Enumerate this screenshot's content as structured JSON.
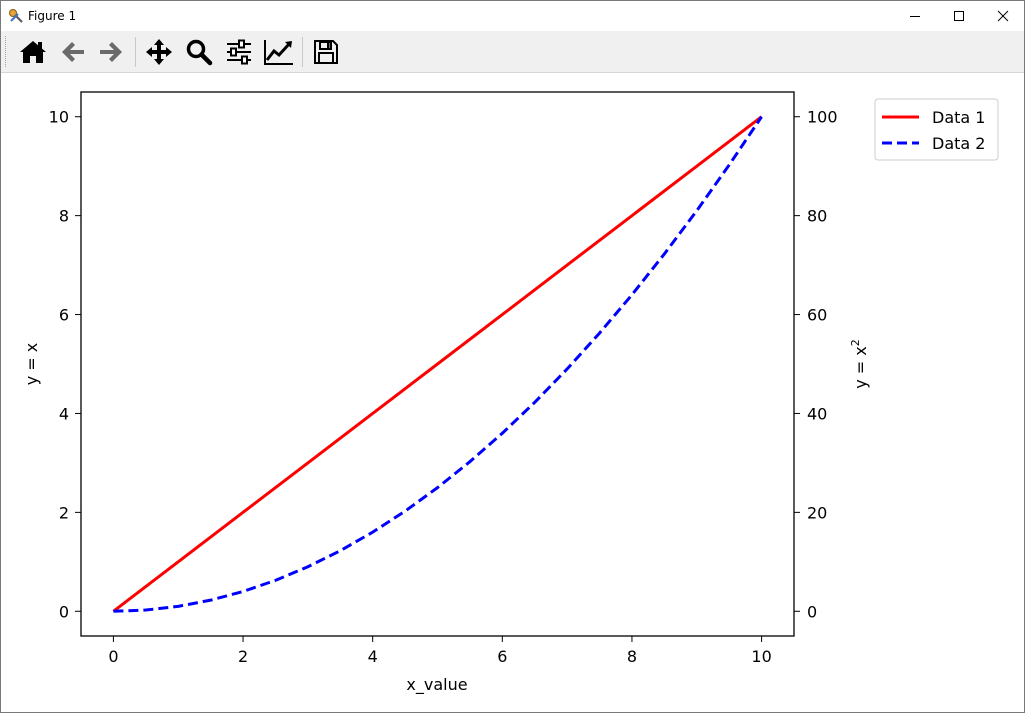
{
  "window": {
    "title": "Figure 1",
    "controls": [
      "minimize",
      "maximize",
      "close"
    ]
  },
  "toolbar": {
    "buttons": [
      {
        "name": "home",
        "icon": "home-icon"
      },
      {
        "name": "back",
        "icon": "arrow-left-icon"
      },
      {
        "name": "forward",
        "icon": "arrow-right-icon"
      },
      {
        "name": "pan",
        "icon": "move-icon"
      },
      {
        "name": "zoom",
        "icon": "magnifier-icon"
      },
      {
        "name": "subplots",
        "icon": "sliders-icon"
      },
      {
        "name": "edit-axes",
        "icon": "line-chart-icon"
      },
      {
        "name": "save",
        "icon": "floppy-disk-icon"
      }
    ]
  },
  "chart_data": {
    "type": "line",
    "xlabel": "x_value",
    "ylabel_left": "y = x",
    "ylabel_right": "y = x",
    "ylabel_right_superscript": "2",
    "xlim": [
      -0.5,
      10.5
    ],
    "ylim_left": [
      -0.5,
      10.5
    ],
    "ylim_right": [
      -5,
      105
    ],
    "xticks": [
      0,
      2,
      4,
      6,
      8,
      10
    ],
    "yticks_left": [
      0,
      2,
      4,
      6,
      8,
      10
    ],
    "yticks_right": [
      0,
      20,
      40,
      60,
      80,
      100
    ],
    "grid": false,
    "legend_position": "outside-right-top",
    "series": [
      {
        "name": "Data 1",
        "axis": "left",
        "color": "#ff0000",
        "style": "solid",
        "x": [
          0,
          1,
          2,
          3,
          4,
          5,
          6,
          7,
          8,
          9,
          10
        ],
        "y": [
          0,
          1,
          2,
          3,
          4,
          5,
          6,
          7,
          8,
          9,
          10
        ]
      },
      {
        "name": "Data 2",
        "axis": "right",
        "color": "#0000ff",
        "style": "dashed",
        "x": [
          0,
          0.5,
          1,
          1.5,
          2,
          2.5,
          3,
          3.5,
          4,
          4.5,
          5,
          5.5,
          6,
          6.5,
          7,
          7.5,
          8,
          8.5,
          9,
          9.5,
          10
        ],
        "y": [
          0,
          0.25,
          1,
          2.25,
          4,
          6.25,
          9,
          12.25,
          16,
          20.25,
          25,
          30.25,
          36,
          42.25,
          49,
          56.25,
          64,
          72.25,
          81,
          90.25,
          100
        ]
      }
    ]
  }
}
